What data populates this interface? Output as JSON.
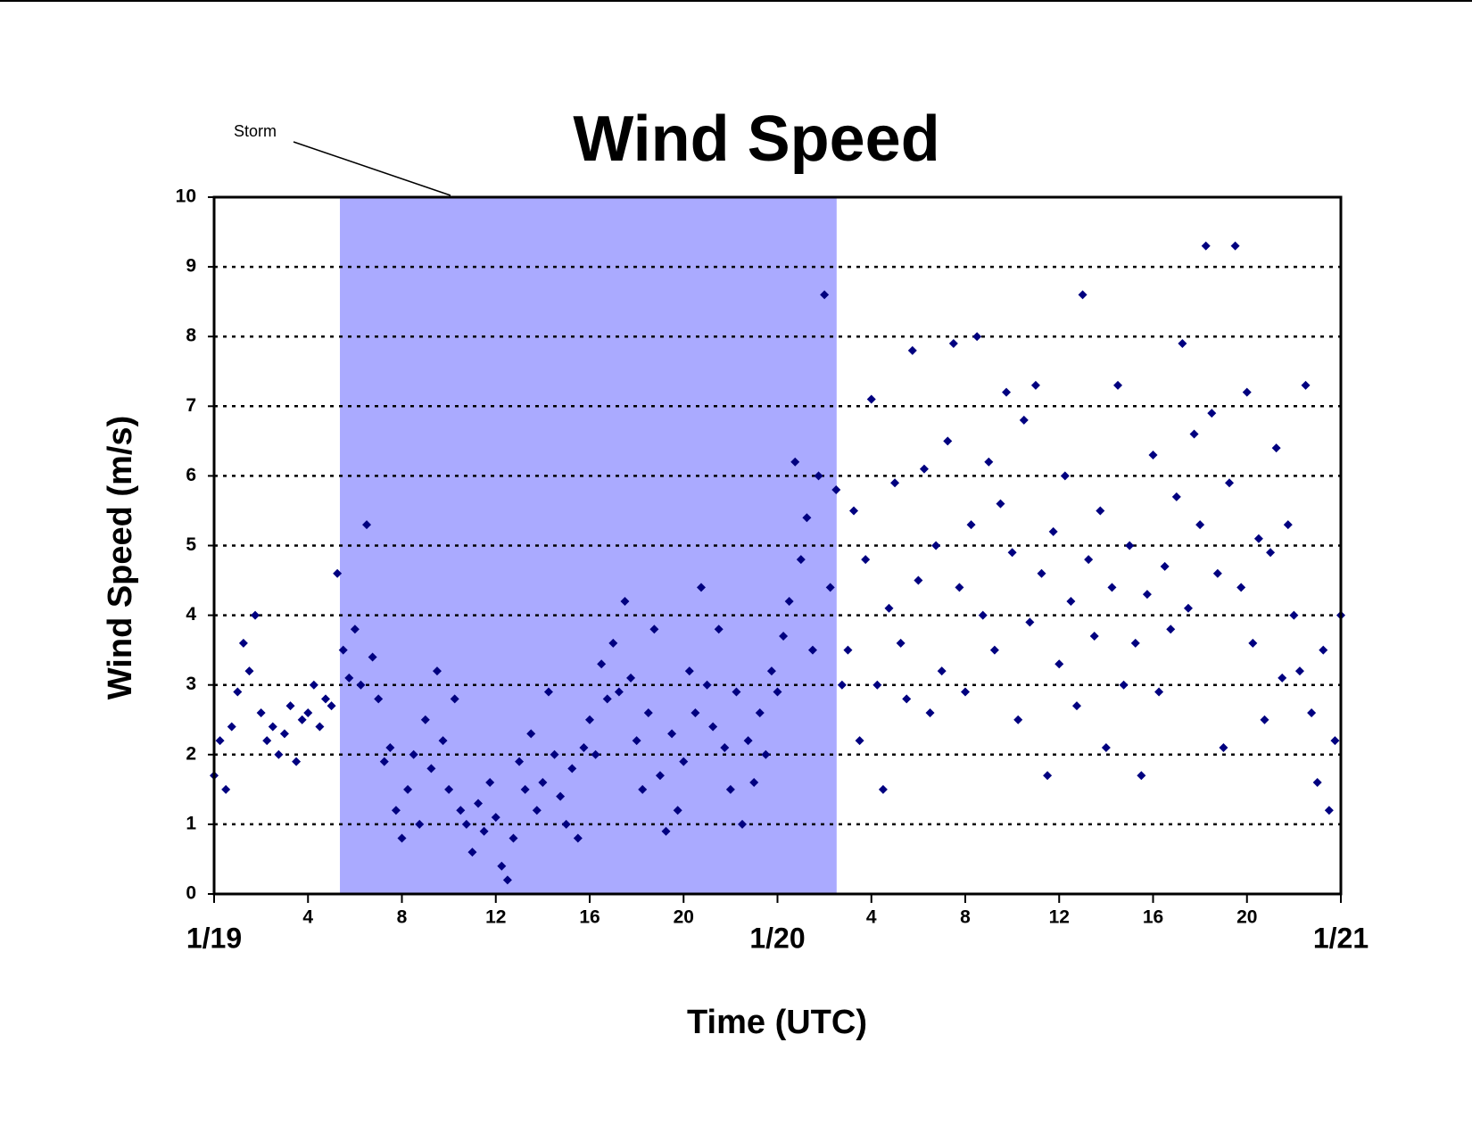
{
  "chart_data": {
    "type": "scatter",
    "title": "Wind Speed",
    "xlabel": "Time (UTC)",
    "ylabel": "Wind Speed (m/s)",
    "annotations": [
      {
        "text": "Storm",
        "x_start": 5.36,
        "x_end": 26.52
      }
    ],
    "xlim": [
      0,
      48
    ],
    "ylim": [
      0,
      10
    ],
    "xticks": [
      {
        "value": 0,
        "label": "1/19"
      },
      4,
      8,
      12,
      16,
      20,
      {
        "value": 24,
        "label": "1/20"
      },
      {
        "value": 28,
        "label": "4"
      },
      {
        "value": 32,
        "label": "8"
      },
      {
        "value": 36,
        "label": "12"
      },
      {
        "value": 40,
        "label": "16"
      },
      {
        "value": 44,
        "label": "20"
      },
      {
        "value": 48,
        "label": "1/21"
      }
    ],
    "yticks": [
      0,
      1,
      2,
      3,
      4,
      5,
      6,
      7,
      8,
      9,
      10
    ],
    "grid": true,
    "color": "#000080",
    "x": [
      0,
      0.25,
      0.5,
      0.75,
      1,
      1.25,
      1.5,
      1.75,
      2,
      2.25,
      2.5,
      2.75,
      3,
      3.25,
      3.5,
      3.75,
      4,
      4.25,
      4.5,
      4.75,
      5,
      5.25,
      5.5,
      5.75,
      6,
      6.25,
      6.5,
      6.75,
      7,
      7.25,
      7.5,
      7.75,
      8,
      8.25,
      8.5,
      8.75,
      9,
      9.25,
      9.5,
      9.75,
      10,
      10.25,
      10.5,
      10.75,
      11,
      11.25,
      11.5,
      11.75,
      12,
      12.25,
      12.5,
      12.75,
      13,
      13.25,
      13.5,
      13.75,
      14,
      14.25,
      14.5,
      14.75,
      15,
      15.25,
      15.5,
      15.75,
      16,
      16.25,
      16.5,
      16.75,
      17,
      17.25,
      17.5,
      17.75,
      18,
      18.25,
      18.5,
      18.75,
      19,
      19.25,
      19.5,
      19.75,
      20,
      20.25,
      20.5,
      20.75,
      21,
      21.25,
      21.5,
      21.75,
      22,
      22.25,
      22.5,
      22.75,
      23,
      23.25,
      23.5,
      23.75,
      24,
      24.25,
      24.5,
      24.75,
      25,
      25.25,
      25.5,
      25.75,
      26,
      26.25,
      26.5,
      26.75,
      27,
      27.25,
      27.5,
      27.75,
      28,
      28.25,
      28.5,
      28.75,
      29,
      29.25,
      29.5,
      29.75,
      30,
      30.25,
      30.5,
      30.75,
      31,
      31.25,
      31.5,
      31.75,
      32,
      32.25,
      32.5,
      32.75,
      33,
      33.25,
      33.5,
      33.75,
      34,
      34.25,
      34.5,
      34.75,
      35,
      35.25,
      35.5,
      35.75,
      36,
      36.25,
      36.5,
      36.75,
      37,
      37.25,
      37.5,
      37.75,
      38,
      38.25,
      38.5,
      38.75,
      39,
      39.25,
      39.5,
      39.75,
      40,
      40.25,
      40.5,
      40.75,
      41,
      41.25,
      41.5,
      41.75,
      42,
      42.25,
      42.5,
      42.75,
      43,
      43.25,
      43.5,
      43.75,
      44,
      44.25,
      44.5,
      44.75,
      45,
      45.25,
      45.5,
      45.75,
      46,
      46.25,
      46.5,
      46.75,
      47,
      47.25,
      47.5,
      47.75,
      48
    ],
    "values": [
      1.7,
      2.2,
      1.5,
      2.4,
      2.9,
      3.6,
      3.2,
      4.0,
      2.6,
      2.2,
      2.4,
      2.0,
      2.3,
      2.7,
      1.9,
      2.5,
      2.6,
      3.0,
      2.4,
      2.8,
      2.7,
      4.6,
      3.5,
      3.1,
      3.8,
      3.0,
      5.3,
      3.4,
      2.8,
      1.9,
      2.1,
      1.2,
      0.8,
      1.5,
      2.0,
      1.0,
      2.5,
      1.8,
      3.2,
      2.2,
      1.5,
      2.8,
      1.2,
      1.0,
      0.6,
      1.3,
      0.9,
      1.6,
      1.1,
      0.4,
      0.2,
      0.8,
      1.9,
      1.5,
      2.3,
      1.2,
      1.6,
      2.9,
      2.0,
      1.4,
      1.0,
      1.8,
      0.8,
      2.1,
      2.5,
      2.0,
      3.3,
      2.8,
      3.6,
      2.9,
      4.2,
      3.1,
      2.2,
      1.5,
      2.6,
      3.8,
      1.7,
      0.9,
      2.3,
      1.2,
      1.9,
      3.2,
      2.6,
      4.4,
      3.0,
      2.4,
      3.8,
      2.1,
      1.5,
      2.9,
      1.0,
      2.2,
      1.6,
      2.6,
      2.0,
      3.2,
      2.9,
      3.7,
      4.2,
      6.2,
      4.8,
      5.4,
      3.5,
      6.0,
      8.6,
      4.4,
      5.8,
      3.0,
      3.5,
      5.5,
      2.2,
      4.8,
      7.1,
      3.0,
      1.5,
      4.1,
      5.9,
      3.6,
      2.8,
      7.8,
      4.5,
      6.1,
      2.6,
      5.0,
      3.2,
      6.5,
      7.9,
      4.4,
      2.9,
      5.3,
      8.0,
      4.0,
      6.2,
      3.5,
      5.6,
      7.2,
      4.9,
      2.5,
      6.8,
      3.9,
      7.3,
      4.6,
      1.7,
      5.2,
      3.3,
      6.0,
      4.2,
      2.7,
      8.6,
      4.8,
      3.7,
      5.5,
      2.1,
      4.4,
      7.3,
      3.0,
      5.0,
      3.6,
      1.7,
      4.3,
      6.3,
      2.9,
      4.7,
      3.8,
      5.7,
      7.9,
      4.1,
      6.6,
      5.3,
      9.3,
      6.9,
      4.6,
      2.1,
      5.9,
      9.3,
      4.4,
      7.2,
      3.6,
      5.1,
      2.5,
      4.9,
      6.4,
      3.1,
      5.3,
      4.0,
      3.2,
      7.3,
      2.6,
      1.6,
      3.5,
      1.2,
      2.2,
      4.0
    ]
  }
}
